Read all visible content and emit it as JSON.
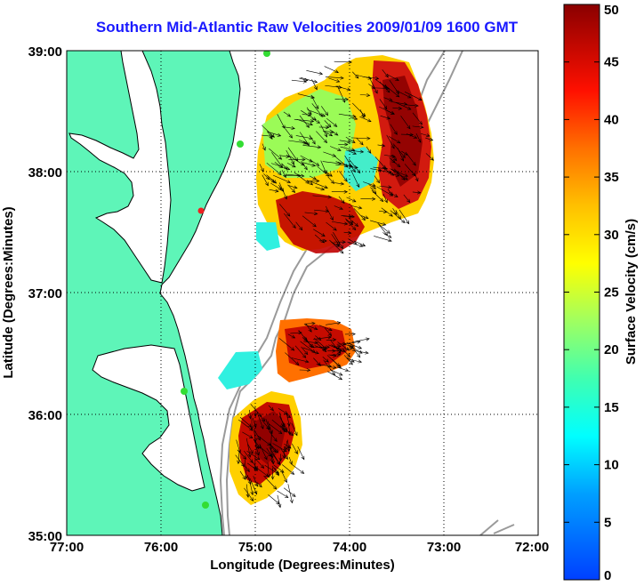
{
  "title": "Southern Mid-Atlantic Raw Velocities 2009/01/09 1600 GMT",
  "x_axis": {
    "label": "Longitude (Degrees:Minutes)",
    "ticks": [
      "77:00",
      "76:00",
      "75:00",
      "74:00",
      "73:00",
      "72:00"
    ]
  },
  "y_axis": {
    "label": "Latitude (Degrees:Minutes)",
    "ticks": [
      "39:00",
      "38:00",
      "37:00",
      "36:00",
      "35:00"
    ]
  },
  "colorbar": {
    "label": "Surface Velocity (cm/s)",
    "ticks": [
      "50",
      "45",
      "40",
      "35",
      "30",
      "25",
      "20",
      "15",
      "10",
      "5",
      "0"
    ],
    "min": 0,
    "max": 50,
    "colormap": "jet"
  },
  "colors": {
    "title": "#1a1aff",
    "land": "#5ef5b8",
    "coastline": "#000000",
    "bathymetry": "#9a9a9a",
    "station_green": "#33dd33",
    "station_red": "#ee2222"
  }
}
